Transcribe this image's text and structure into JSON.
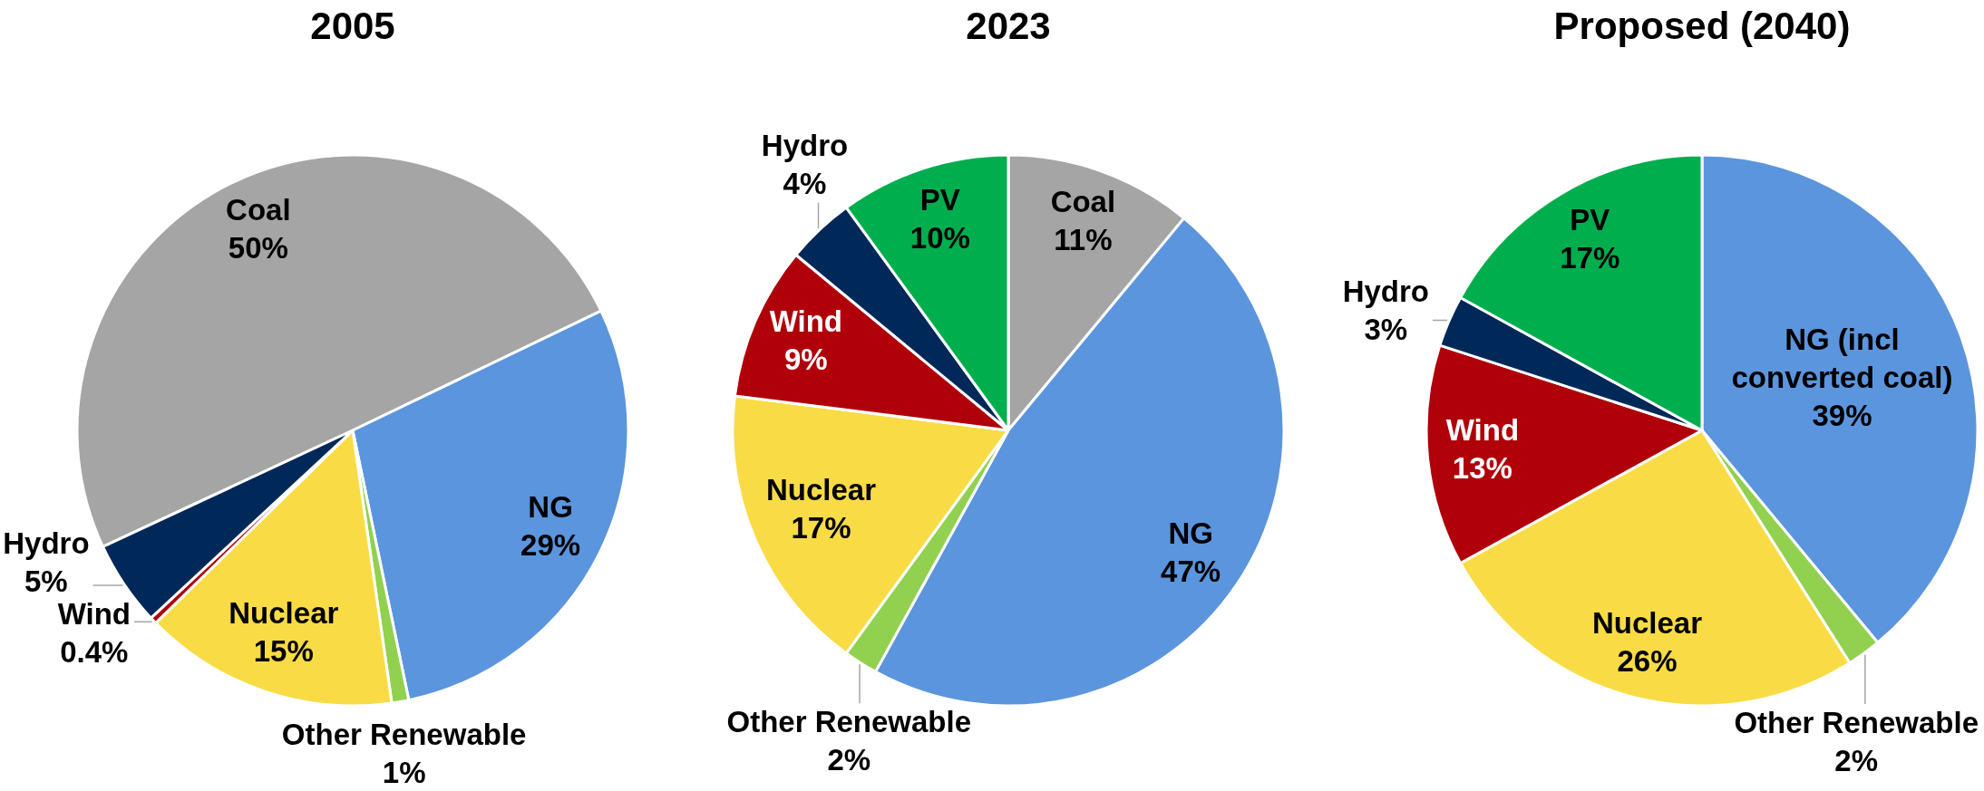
{
  "chart_data": [
    {
      "type": "pie",
      "title": "2005",
      "categories": [
        "Coal",
        "NG",
        "Other Renewable",
        "Nuclear",
        "Wind",
        "Hydro"
      ],
      "values": [
        50,
        29,
        1,
        15,
        0.4,
        5
      ],
      "value_labels": [
        "50%",
        "29%",
        "1%",
        "15%",
        "0.4%",
        "5%"
      ],
      "colors": [
        "#a5a5a5",
        "#5b95de",
        "#92d050",
        "#f9dc45",
        "#b0000a",
        "#002858"
      ]
    },
    {
      "type": "pie",
      "title": "2023",
      "categories": [
        "Coal",
        "NG",
        "Other Renewable",
        "Nuclear",
        "Wind",
        "Hydro",
        "PV"
      ],
      "values": [
        11,
        47,
        2,
        17,
        9,
        4,
        10
      ],
      "value_labels": [
        "11%",
        "47%",
        "2%",
        "17%",
        "9%",
        "4%",
        "10%"
      ],
      "colors": [
        "#a5a5a5",
        "#5b95de",
        "#92d050",
        "#f9dc45",
        "#b0000a",
        "#002858",
        "#00ae4e"
      ]
    },
    {
      "type": "pie",
      "title": "Proposed (2040)",
      "categories": [
        "NG (incl converted coal)",
        "Other Renewable",
        "Nuclear",
        "Wind",
        "Hydro",
        "PV"
      ],
      "values": [
        39,
        2,
        26,
        13,
        3,
        17
      ],
      "value_labels": [
        "39%",
        "2%",
        "26%",
        "13%",
        "3%",
        "17%"
      ],
      "colors": [
        "#5b95de",
        "#92d050",
        "#f9dc45",
        "#b0000a",
        "#002858",
        "#00ae4e"
      ]
    }
  ]
}
